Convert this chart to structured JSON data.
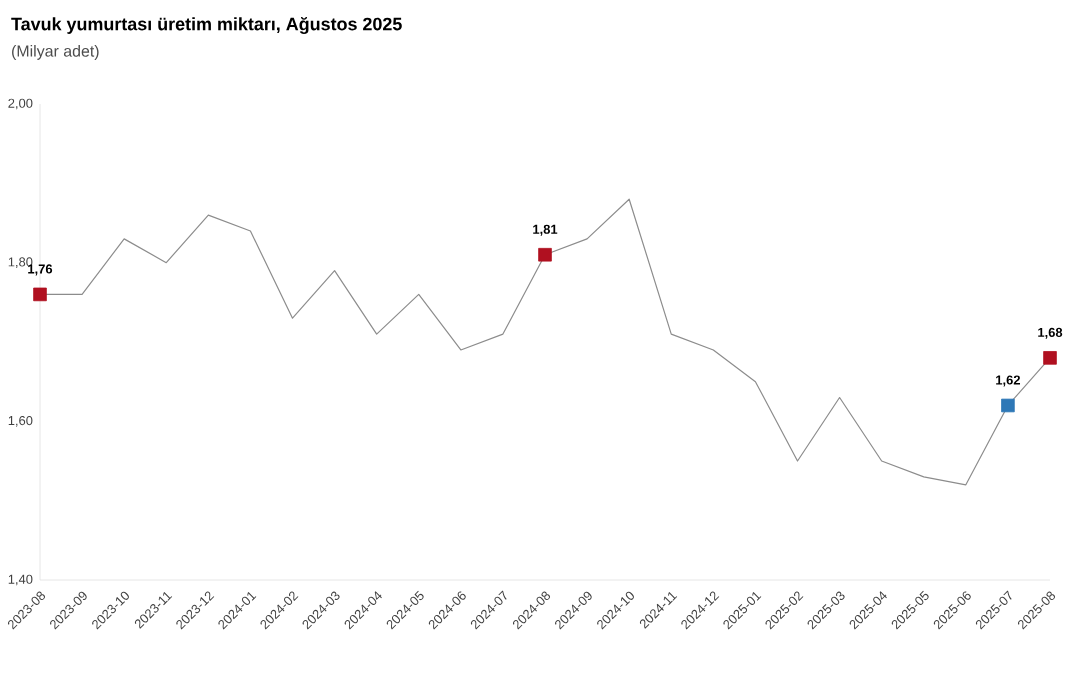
{
  "chart_data": {
    "type": "line",
    "title": "Tavuk yumurtası üretim miktarı, Ağustos 2025",
    "subtitle": "(Milyar adet)",
    "categories": [
      "2023-08",
      "2023-09",
      "2023-10",
      "2023-11",
      "2023-12",
      "2024-01",
      "2024-02",
      "2024-03",
      "2024-04",
      "2024-05",
      "2024-06",
      "2024-07",
      "2024-08",
      "2024-09",
      "2024-10",
      "2024-11",
      "2024-12",
      "2025-01",
      "2025-02",
      "2025-03",
      "2025-04",
      "2025-05",
      "2025-06",
      "2025-07",
      "2025-08"
    ],
    "ylim": [
      1.4,
      2.0
    ],
    "yticks": [
      {
        "value": 1.4,
        "label": "1,40"
      },
      {
        "value": 1.6,
        "label": "1,60"
      },
      {
        "value": 1.8,
        "label": "1,80"
      },
      {
        "value": 2.0,
        "label": "2,00"
      }
    ],
    "series": [
      {
        "color": "#8c8c8c",
        "values": [
          1.76,
          1.76,
          1.83,
          1.8,
          1.86,
          1.84,
          1.73,
          1.79,
          1.71,
          1.76,
          1.69,
          1.71,
          1.81,
          1.83,
          1.88,
          1.71,
          1.69,
          1.65,
          1.55,
          1.63,
          1.55,
          1.53,
          1.52,
          1.62,
          1.68
        ]
      },
      {
        "type": "scatter",
        "marker": "square",
        "colors": [
          "#b01020",
          null,
          null,
          null,
          null,
          null,
          null,
          null,
          null,
          null,
          null,
          null,
          "#b01020",
          null,
          null,
          null,
          null,
          null,
          null,
          null,
          null,
          null,
          null,
          "#2e78b7",
          "#b01020"
        ],
        "values": [
          1.76,
          null,
          null,
          null,
          null,
          null,
          null,
          null,
          null,
          null,
          null,
          null,
          1.81,
          null,
          null,
          null,
          null,
          null,
          null,
          null,
          null,
          null,
          null,
          1.62,
          1.68
        ],
        "value_labels": [
          "1,76",
          null,
          null,
          null,
          null,
          null,
          null,
          null,
          null,
          null,
          null,
          null,
          "1,81",
          null,
          null,
          null,
          null,
          null,
          null,
          null,
          null,
          null,
          null,
          "1,62",
          "1,68"
        ]
      }
    ]
  }
}
